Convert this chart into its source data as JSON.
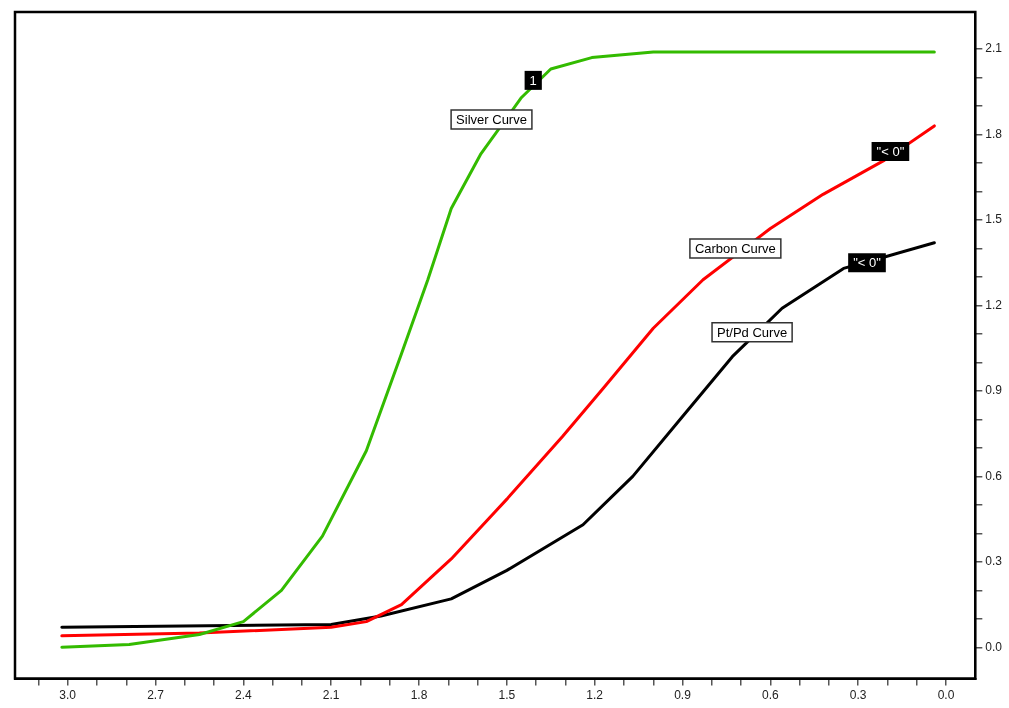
{
  "chart_data": {
    "type": "line",
    "xlim": [
      3.18,
      -0.1
    ],
    "ylim": [
      -0.11,
      2.23
    ],
    "xticks": [
      {
        "value": 3.1,
        "label": null
      },
      {
        "value": 3.0,
        "label": "3.0"
      },
      {
        "value": 2.9,
        "label": null
      },
      {
        "value": 2.8,
        "label": null
      },
      {
        "value": 2.7,
        "label": "2.7"
      },
      {
        "value": 2.6,
        "label": null
      },
      {
        "value": 2.5,
        "label": null
      },
      {
        "value": 2.4,
        "label": "2.4"
      },
      {
        "value": 2.3,
        "label": null
      },
      {
        "value": 2.2,
        "label": null
      },
      {
        "value": 2.1,
        "label": "2.1"
      },
      {
        "value": 2.0,
        "label": null
      },
      {
        "value": 1.9,
        "label": null
      },
      {
        "value": 1.8,
        "label": "1.8"
      },
      {
        "value": 1.7,
        "label": null
      },
      {
        "value": 1.6,
        "label": null
      },
      {
        "value": 1.5,
        "label": "1.5"
      },
      {
        "value": 1.4,
        "label": null
      },
      {
        "value": 1.3,
        "label": null
      },
      {
        "value": 1.2,
        "label": "1.2"
      },
      {
        "value": 1.1,
        "label": null
      },
      {
        "value": 1.0,
        "label": null
      },
      {
        "value": 0.9,
        "label": "0.9"
      },
      {
        "value": 0.8,
        "label": null
      },
      {
        "value": 0.7,
        "label": null
      },
      {
        "value": 0.6,
        "label": "0.6"
      },
      {
        "value": 0.5,
        "label": null
      },
      {
        "value": 0.4,
        "label": null
      },
      {
        "value": 0.3,
        "label": "0.3"
      },
      {
        "value": 0.2,
        "label": null
      },
      {
        "value": 0.1,
        "label": null
      },
      {
        "value": 0.0,
        "label": "0.0"
      }
    ],
    "yticks": [
      {
        "value": 0.0,
        "label": "0.0"
      },
      {
        "value": 0.1,
        "label": null
      },
      {
        "value": 0.2,
        "label": null
      },
      {
        "value": 0.3,
        "label": "0.3"
      },
      {
        "value": 0.4,
        "label": null
      },
      {
        "value": 0.5,
        "label": null
      },
      {
        "value": 0.6,
        "label": "0.6"
      },
      {
        "value": 0.7,
        "label": null
      },
      {
        "value": 0.8,
        "label": null
      },
      {
        "value": 0.9,
        "label": "0.9"
      },
      {
        "value": 1.0,
        "label": null
      },
      {
        "value": 1.1,
        "label": null
      },
      {
        "value": 1.2,
        "label": "1.2"
      },
      {
        "value": 1.3,
        "label": null
      },
      {
        "value": 1.4,
        "label": null
      },
      {
        "value": 1.5,
        "label": "1.5"
      },
      {
        "value": 1.6,
        "label": null
      },
      {
        "value": 1.7,
        "label": null
      },
      {
        "value": 1.8,
        "label": "1.8"
      },
      {
        "value": 1.9,
        "label": null
      },
      {
        "value": 2.0,
        "label": null
      },
      {
        "value": 2.1,
        "label": "2.1"
      }
    ],
    "marker": "none",
    "line_style": "solid",
    "series": [
      {
        "name": "Silver Curve",
        "color": "#33bb00",
        "x": [
          3.02,
          2.79,
          2.55,
          2.4,
          2.27,
          2.13,
          1.98,
          1.86,
          1.77,
          1.69,
          1.59,
          1.45,
          1.35,
          1.21,
          1.0,
          0.04
        ],
        "values": [
          0.0,
          0.01,
          0.045,
          0.09,
          0.2,
          0.39,
          0.69,
          1.03,
          1.29,
          1.54,
          1.73,
          1.93,
          2.03,
          2.07,
          2.09,
          2.09
        ]
      },
      {
        "name": "Carbon Curve",
        "color": "#ff0000",
        "x": [
          3.02,
          2.55,
          2.1,
          1.98,
          1.86,
          1.69,
          1.5,
          1.31,
          1.17,
          1.0,
          0.83,
          0.6,
          0.42,
          0.21,
          0.04
        ],
        "values": [
          0.04,
          0.05,
          0.07,
          0.09,
          0.15,
          0.31,
          0.52,
          0.74,
          0.91,
          1.12,
          1.29,
          1.47,
          1.59,
          1.71,
          1.83
        ]
      },
      {
        "name": "Pt/Pd Curve",
        "color": "#000000",
        "x": [
          3.02,
          2.1,
          1.93,
          1.69,
          1.5,
          1.24,
          1.07,
          0.9,
          0.73,
          0.56,
          0.35,
          0.21,
          0.04
        ],
        "values": [
          0.07,
          0.08,
          0.11,
          0.17,
          0.27,
          0.43,
          0.6,
          0.81,
          1.02,
          1.19,
          1.33,
          1.37,
          1.42
        ]
      }
    ],
    "annotations": [
      {
        "text": "1",
        "x": 1.41,
        "y": 1.99
      },
      {
        "text": "\"< 0\"",
        "x": 0.19,
        "y": 1.74
      },
      {
        "text": "\"< 0\"",
        "x": 0.27,
        "y": 1.35
      }
    ]
  }
}
